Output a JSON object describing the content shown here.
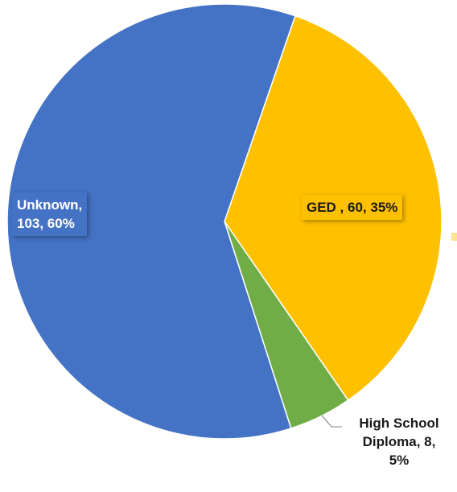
{
  "chart_data": {
    "type": "pie",
    "title": "",
    "slices": [
      {
        "name": "GED ",
        "value": 60,
        "percent": "35%",
        "color": "#FFC000",
        "label": "GED , 60, 35%"
      },
      {
        "name": "High School Diploma",
        "value": 8,
        "percent": "5%",
        "color": "#70AD47",
        "label": "High School\nDiploma, 8,\n5%"
      },
      {
        "name": "Unknown",
        "value": 103,
        "percent": "60%",
        "color": "#4472C4",
        "label": "Unknown,\n103, 60%"
      }
    ],
    "legend": "none"
  }
}
